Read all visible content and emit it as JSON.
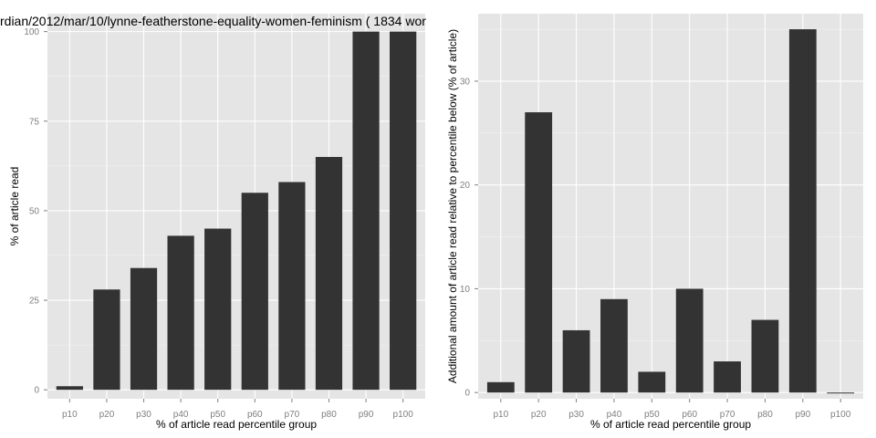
{
  "title": "rdian/2012/mar/10/lynne-featherstone-equality-women-feminism ( 1834 wor",
  "chart_data": [
    {
      "type": "bar",
      "categories": [
        "p10",
        "p20",
        "p30",
        "p40",
        "p50",
        "p60",
        "p70",
        "p80",
        "p90",
        "p100"
      ],
      "values": [
        1,
        28,
        34,
        43,
        45,
        55,
        58,
        65,
        100,
        100
      ],
      "xlabel": "% of article read percentile group",
      "ylabel": "% of article read",
      "ylim": [
        -2.5,
        105
      ],
      "yticks": [
        0,
        25,
        50,
        75,
        100
      ],
      "grid": true
    },
    {
      "type": "bar",
      "categories": [
        "p10",
        "p20",
        "p30",
        "p40",
        "p50",
        "p60",
        "p70",
        "p80",
        "p90",
        "p100"
      ],
      "values": [
        1,
        27,
        6,
        9,
        2,
        10,
        3,
        7,
        35,
        0
      ],
      "xlabel": "% of article read percentile group",
      "ylabel": "Additional amount of article read relative to percentile below (% of article)",
      "ylim": [
        -0.6,
        36.5
      ],
      "yticks": [
        0,
        10,
        20,
        30
      ],
      "grid": true
    }
  ]
}
